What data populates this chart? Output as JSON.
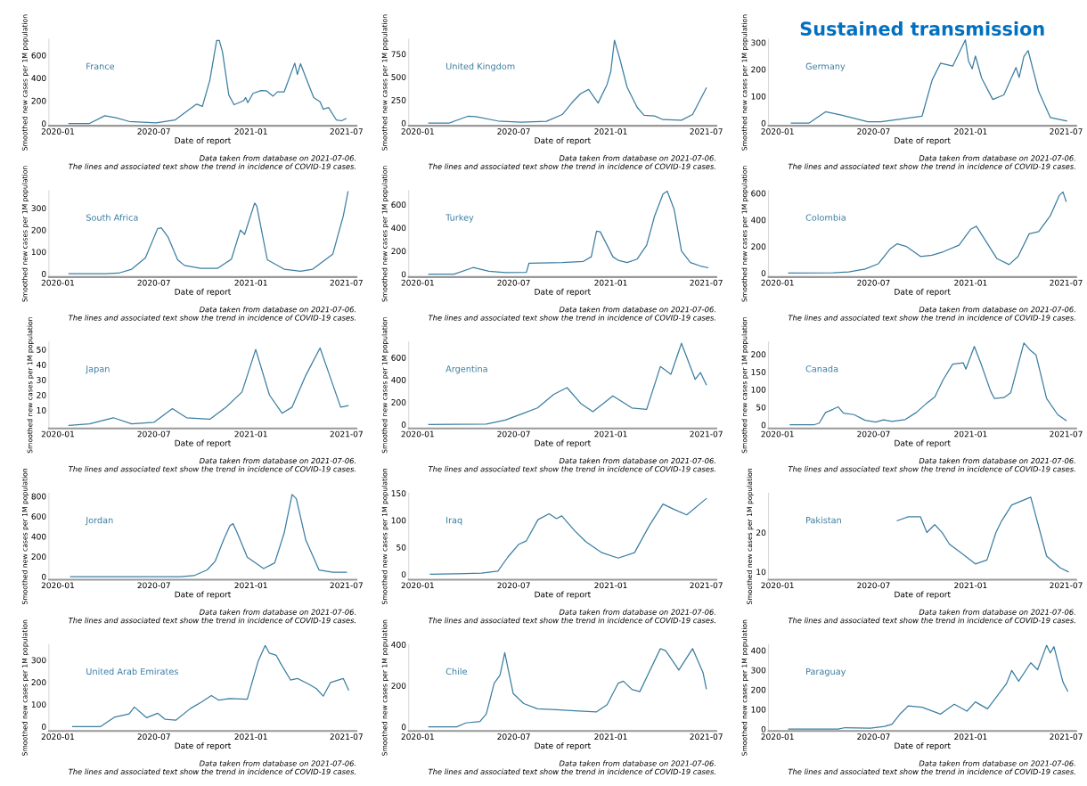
{
  "chart_data": [
    {
      "type": "line",
      "xlabel": "Date of report",
      "ylabel": "Smoothed new cases per 1M population",
      "xlim": [
        "2019-12-15",
        "2021-07-20"
      ],
      "xticks": [
        "2020-01",
        "2020-07",
        "2021-01",
        "2021-07"
      ],
      "ylim": [
        -20,
        740
      ],
      "yticks": [
        0,
        200,
        400,
        600
      ],
      "annotations": [
        "Data taken from database on 2021-07-06.\nThe lines and associated text show the trend in incidence of COVID-19 cases."
      ],
      "series": [
        {
          "name": "France",
          "color": "#3b7ea1",
          "x": [
            "2020-01-22",
            "2020-03-01",
            "2020-03-30",
            "2020-04-20",
            "2020-05-15",
            "2020-07-05",
            "2020-08-10",
            "2020-09-05",
            "2020-09-20",
            "2020-10-01",
            "2020-10-15",
            "2020-10-28",
            "2020-11-02",
            "2020-11-08",
            "2020-11-20",
            "2020-11-30",
            "2020-12-18",
            "2020-12-22",
            "2020-12-26",
            "2021-01-05",
            "2021-01-20",
            "2021-01-30",
            "2021-02-12",
            "2021-02-20",
            "2021-03-05",
            "2021-03-25",
            "2021-03-30",
            "2021-04-05",
            "2021-04-17",
            "2021-04-30",
            "2021-05-12",
            "2021-05-18",
            "2021-05-28",
            "2021-06-12",
            "2021-06-22",
            "2021-06-30"
          ],
          "values": [
            0,
            0,
            68,
            50,
            18,
            6,
            30,
            120,
            170,
            150,
            380,
            730,
            730,
            630,
            250,
            165,
            200,
            228,
            183,
            265,
            290,
            288,
            240,
            278,
            278,
            530,
            430,
            525,
            380,
            228,
            190,
            125,
            140,
            30,
            24,
            43
          ]
        }
      ]
    },
    {
      "type": "line",
      "xlabel": "Date of report",
      "ylabel": "Smoothed new cases per 1M population",
      "xlim": [
        "2019-12-15",
        "2021-07-20"
      ],
      "xticks": [
        "2020-01",
        "2020-07",
        "2021-01",
        "2021-07"
      ],
      "ylim": [
        -30,
        910
      ],
      "yticks": [
        0,
        250,
        500,
        750
      ],
      "annotations": [
        "Data taken from database on 2021-07-06.\nThe lines and associated text show the trend in incidence of COVID-19 cases."
      ],
      "series": [
        {
          "name": "United Kingdom",
          "color": "#3b7ea1",
          "x": [
            "2020-01-22",
            "2020-03-01",
            "2020-04-05",
            "2020-04-20",
            "2020-06-01",
            "2020-07-15",
            "2020-09-01",
            "2020-10-01",
            "2020-10-20",
            "2020-11-05",
            "2020-11-20",
            "2020-12-08",
            "2020-12-25",
            "2021-01-01",
            "2021-01-08",
            "2021-01-18",
            "2021-02-01",
            "2021-02-20",
            "2021-03-05",
            "2021-03-25",
            "2021-04-10",
            "2021-05-15",
            "2021-06-05",
            "2021-07-01"
          ],
          "values": [
            0,
            0,
            73,
            69,
            22,
            9,
            19,
            92,
            225,
            320,
            365,
            217,
            420,
            560,
            900,
            700,
            388,
            170,
            84,
            76,
            37,
            30,
            92,
            380
          ]
        }
      ]
    },
    {
      "type": "line",
      "title": "Sustained transmission",
      "xlabel": "Date of report",
      "ylabel": "Smoothed new cases per 1M population",
      "xlim": [
        "2019-12-15",
        "2021-07-20"
      ],
      "xticks": [
        "2020-01",
        "2020-07",
        "2021-01",
        "2021-07"
      ],
      "ylim": [
        -10,
        312
      ],
      "yticks": [
        0,
        100,
        200,
        300
      ],
      "annotations": [
        "Data taken from database on 2021-07-06.\nThe lines and associated text show the trend in incidence of COVID-19 cases."
      ],
      "series": [
        {
          "name": "Germany",
          "color": "#3b7ea1",
          "x": [
            "2020-01-27",
            "2020-03-01",
            "2020-04-01",
            "2020-05-01",
            "2020-06-20",
            "2020-07-15",
            "2020-08-25",
            "2020-10-01",
            "2020-10-20",
            "2020-11-05",
            "2020-11-28",
            "2020-12-22",
            "2020-12-28",
            "2021-01-04",
            "2021-01-10",
            "2021-01-22",
            "2021-02-12",
            "2021-03-05",
            "2021-03-28",
            "2021-04-03",
            "2021-04-12",
            "2021-04-20",
            "2021-05-10",
            "2021-06-01",
            "2021-07-02"
          ],
          "values": [
            0,
            0,
            42,
            30,
            5,
            5,
            16,
            26,
            160,
            223,
            212,
            310,
            231,
            202,
            250,
            167,
            88,
            105,
            207,
            170,
            248,
            270,
            118,
            21,
            8
          ]
        }
      ]
    },
    {
      "type": "line",
      "xlabel": "Date of report",
      "ylabel": "Smoothed new cases per 1M population",
      "xlim": [
        "2019-12-15",
        "2021-07-20"
      ],
      "xticks": [
        "2020-01",
        "2020-07",
        "2021-01",
        "2021-07"
      ],
      "ylim": [
        -15,
        380
      ],
      "yticks": [
        0,
        100,
        200,
        300
      ],
      "annotations": [
        "Data taken from database on 2021-07-06.\nThe lines and associated text show the trend in incidence of COVID-19 cases."
      ],
      "series": [
        {
          "name": "South Africa",
          "color": "#3b7ea1",
          "x": [
            "2020-01-22",
            "2020-04-01",
            "2020-04-25",
            "2020-05-20",
            "2020-06-15",
            "2020-07-08",
            "2020-07-15",
            "2020-07-28",
            "2020-08-15",
            "2020-08-28",
            "2020-09-28",
            "2020-10-30",
            "2020-11-25",
            "2020-12-12",
            "2020-12-20",
            "2021-01-08",
            "2021-01-12",
            "2021-02-01",
            "2021-03-05",
            "2021-04-05",
            "2021-04-28",
            "2021-06-05",
            "2021-06-25",
            "2021-07-04"
          ],
          "values": [
            0,
            0,
            3,
            21,
            73,
            206,
            210,
            167,
            64,
            38,
            25,
            25,
            67,
            200,
            180,
            323,
            310,
            64,
            21,
            12,
            21,
            89,
            264,
            375
          ]
        }
      ]
    },
    {
      "type": "line",
      "xlabel": "Date of report",
      "ylabel": "Smoothed new cases per 1M population",
      "xlim": [
        "2019-12-15",
        "2021-07-20"
      ],
      "xticks": [
        "2020-01",
        "2020-07",
        "2021-01",
        "2021-07"
      ],
      "ylim": [
        -25,
        720
      ],
      "yticks": [
        0,
        200,
        400,
        600
      ],
      "annotations": [
        "Data taken from database on 2021-07-06.\nThe lines and associated text show the trend in incidence of COVID-19 cases."
      ],
      "series": [
        {
          "name": "Turkey",
          "color": "#3b7ea1",
          "x": [
            "2020-01-22",
            "2020-03-10",
            "2020-04-15",
            "2020-05-15",
            "2020-06-15",
            "2020-07-25",
            "2020-07-30",
            "2020-10-01",
            "2020-11-10",
            "2020-11-25",
            "2020-12-05",
            "2020-12-12",
            "2020-12-25",
            "2021-01-05",
            "2021-01-15",
            "2021-02-01",
            "2021-02-20",
            "2021-03-10",
            "2021-03-25",
            "2021-04-10",
            "2021-04-18",
            "2021-05-01",
            "2021-05-15",
            "2021-06-01",
            "2021-06-20",
            "2021-07-04"
          ],
          "values": [
            0,
            0,
            57,
            25,
            14,
            15,
            95,
            100,
            110,
            150,
            370,
            365,
            250,
            150,
            120,
            100,
            130,
            250,
            500,
            690,
            715,
            560,
            200,
            100,
            70,
            56
          ]
        }
      ]
    },
    {
      "type": "line",
      "xlabel": "Date of report",
      "ylabel": "Smoothed new cases per 1M population",
      "xlim": [
        "2019-12-15",
        "2021-07-20"
      ],
      "xticks": [
        "2020-01",
        "2020-07",
        "2021-01",
        "2021-07"
      ],
      "ylim": [
        -30,
        620
      ],
      "yticks": [
        0,
        200,
        400,
        600
      ],
      "annotations": [
        "Data taken from database on 2021-07-06.\nThe lines and associated text show the trend in incidence of COVID-19 cases."
      ],
      "series": [
        {
          "name": "Colombia",
          "color": "#3b7ea1",
          "x": [
            "2020-01-22",
            "2020-04-15",
            "2020-05-15",
            "2020-06-15",
            "2020-07-10",
            "2020-07-20",
            "2020-08-01",
            "2020-08-15",
            "2020-09-01",
            "2020-09-28",
            "2020-10-20",
            "2020-11-10",
            "2020-12-10",
            "2021-01-01",
            "2021-01-12",
            "2021-02-01",
            "2021-02-20",
            "2021-03-15",
            "2021-04-01",
            "2021-04-22",
            "2021-05-10",
            "2021-06-01",
            "2021-06-18",
            "2021-06-25",
            "2021-07-01"
          ],
          "values": [
            0,
            2,
            8,
            30,
            70,
            120,
            180,
            220,
            200,
            125,
            135,
            160,
            210,
            329,
            352,
            227,
            108,
            64,
            125,
            295,
            312,
            430,
            583,
            610,
            539
          ]
        }
      ]
    },
    {
      "type": "line",
      "xlabel": "Date of report",
      "ylabel": "Smoothed new cases per 1M population",
      "xlim": [
        "2019-12-15",
        "2021-07-20"
      ],
      "xticks": [
        "2020-01",
        "2020-07",
        "2021-01",
        "2021-07"
      ],
      "ylim": [
        -2,
        55
      ],
      "yticks": [
        10,
        20,
        30,
        40,
        50
      ],
      "annotations": [
        "Data taken from database on 2021-07-06.\nThe lines and associated text show the trend in incidence of COVID-19 cases."
      ],
      "series": [
        {
          "name": "Japan",
          "color": "#3b7ea1",
          "x": [
            "2020-01-22",
            "2020-03-01",
            "2020-04-15",
            "2020-05-20",
            "2020-07-01",
            "2020-08-05",
            "2020-09-01",
            "2020-10-15",
            "2020-11-15",
            "2020-12-15",
            "2021-01-10",
            "2021-02-05",
            "2021-03-01",
            "2021-03-20",
            "2021-04-15",
            "2021-05-12",
            "2021-05-25",
            "2021-06-20",
            "2021-07-04"
          ],
          "values": [
            0,
            1,
            5,
            1,
            2,
            11,
            5,
            4,
            12,
            22,
            50,
            20,
            8,
            12,
            33,
            51,
            38,
            12,
            13
          ]
        }
      ]
    },
    {
      "type": "line",
      "xlabel": "Date of report",
      "ylabel": "Smoothed new cases per 1M population",
      "xlim": [
        "2019-12-15",
        "2021-07-20"
      ],
      "xticks": [
        "2020-01",
        "2020-07",
        "2021-01",
        "2021-07"
      ],
      "ylim": [
        -35,
        740
      ],
      "yticks": [
        0,
        200,
        400,
        600
      ],
      "annotations": [
        "Data taken from database on 2021-07-06.\nThe lines and associated text show the trend in incidence of COVID-19 cases."
      ],
      "series": [
        {
          "name": "Argentina",
          "color": "#3b7ea1",
          "x": [
            "2020-01-22",
            "2020-05-10",
            "2020-06-15",
            "2020-07-20",
            "2020-08-15",
            "2020-09-15",
            "2020-10-10",
            "2020-11-05",
            "2020-11-28",
            "2021-01-05",
            "2021-02-10",
            "2021-03-10",
            "2021-04-05",
            "2021-04-25",
            "2021-05-15",
            "2021-06-10",
            "2021-06-20",
            "2021-07-01"
          ],
          "values": [
            0,
            3,
            40,
            101,
            148,
            270,
            330,
            189,
            115,
            256,
            148,
            135,
            519,
            450,
            728,
            404,
            465,
            357
          ]
        }
      ]
    },
    {
      "type": "line",
      "xlabel": "Date of report",
      "ylabel": "Smoothed new cases per 1M population",
      "xlim": [
        "2019-12-15",
        "2021-07-20"
      ],
      "xticks": [
        "2020-01",
        "2020-07",
        "2021-01",
        "2021-07"
      ],
      "ylim": [
        -10,
        235
      ],
      "yticks": [
        0,
        50,
        100,
        150,
        200
      ],
      "annotations": [
        "Data taken from database on 2021-07-06.\nThe lines and associated text show the trend in incidence of COVID-19 cases."
      ],
      "series": [
        {
          "name": "Canada",
          "color": "#3b7ea1",
          "x": [
            "2020-01-25",
            "2020-03-10",
            "2020-03-20",
            "2020-04-01",
            "2020-04-15",
            "2020-04-25",
            "2020-05-05",
            "2020-05-25",
            "2020-06-15",
            "2020-07-05",
            "2020-07-20",
            "2020-08-05",
            "2020-08-30",
            "2020-09-20",
            "2020-10-08",
            "2020-10-25",
            "2020-11-10",
            "2020-11-28",
            "2020-12-18",
            "2020-12-23",
            "2021-01-08",
            "2021-01-20",
            "2021-02-08",
            "2021-02-15",
            "2021-03-05",
            "2021-03-18",
            "2021-04-12",
            "2021-04-25",
            "2021-05-05",
            "2021-05-25",
            "2021-06-15",
            "2021-07-01"
          ],
          "values": [
            0,
            0,
            5,
            35,
            44,
            51,
            33,
            29,
            13,
            8,
            14,
            10,
            15,
            35,
            59,
            79,
            128,
            172,
            176,
            158,
            222,
            176,
            95,
            75,
            77,
            91,
            232,
            210,
            198,
            75,
            29,
            12
          ]
        }
      ]
    },
    {
      "type": "line",
      "xlabel": "Date of report",
      "ylabel": "Smoothed new cases per 1M population",
      "xlim": [
        "2019-12-15",
        "2021-07-20"
      ],
      "xticks": [
        "2020-01",
        "2020-07",
        "2021-01",
        "2021-07"
      ],
      "ylim": [
        -30,
        830
      ],
      "yticks": [
        0,
        200,
        400,
        600,
        800
      ],
      "annotations": [
        "Data taken from database on 2021-07-06.\nThe lines and associated text show the trend in incidence of COVID-19 cases."
      ],
      "series": [
        {
          "name": "Jordan",
          "color": "#3b7ea1",
          "x": [
            "2020-01-25",
            "2020-08-20",
            "2020-09-15",
            "2020-10-10",
            "2020-10-25",
            "2020-11-10",
            "2020-11-22",
            "2020-11-28",
            "2020-12-05",
            "2020-12-25",
            "2021-01-25",
            "2021-02-15",
            "2021-03-05",
            "2021-03-20",
            "2021-03-28",
            "2021-04-15",
            "2021-05-10",
            "2021-06-05",
            "2021-07-01"
          ],
          "values": [
            0,
            0,
            10,
            67,
            152,
            364,
            506,
            527,
            449,
            194,
            81,
            137,
            435,
            817,
            775,
            364,
            67,
            45,
            45
          ]
        }
      ]
    },
    {
      "type": "line",
      "xlabel": "Date of report",
      "ylabel": "Smoothed new cases per 1M population",
      "xlim": [
        "2019-12-15",
        "2021-07-20"
      ],
      "xticks": [
        "2020-01",
        "2020-07",
        "2021-01",
        "2021-07"
      ],
      "ylim": [
        -10,
        150
      ],
      "yticks": [
        0,
        50,
        100,
        150
      ],
      "annotations": [
        "Data taken from database on 2021-07-06.\nThe lines and associated text show the trend in incidence of COVID-19 cases."
      ],
      "series": [
        {
          "name": "Iraq",
          "color": "#3b7ea1",
          "x": [
            "2020-01-25",
            "2020-03-15",
            "2020-05-01",
            "2020-06-01",
            "2020-06-20",
            "2020-07-10",
            "2020-07-25",
            "2020-08-16",
            "2020-09-06",
            "2020-09-20",
            "2020-09-30",
            "2020-10-25",
            "2020-11-15",
            "2020-12-15",
            "2021-01-15",
            "2021-02-15",
            "2021-03-15",
            "2021-04-10",
            "2021-05-01",
            "2021-05-25",
            "2021-07-01"
          ],
          "values": [
            0,
            1,
            2,
            6,
            32,
            55,
            62,
            101,
            112,
            103,
            108,
            80,
            60,
            40,
            30,
            40,
            90,
            130,
            120,
            110,
            140
          ]
        }
      ]
    },
    {
      "type": "line",
      "xlabel": "Date of report",
      "ylabel": "Smoothed new cases per 1M population",
      "xlim": [
        "2019-12-15",
        "2021-07-20"
      ],
      "xticks": [
        "2020-01",
        "2020-07",
        "2021-01",
        "2021-07"
      ],
      "ylim": [
        8,
        30
      ],
      "yticks": [
        10,
        20
      ],
      "annotations": [
        "Data taken from database on 2021-07-06.\nThe lines and associated text show the trend in incidence of COVID-19 cases."
      ],
      "series": [
        {
          "name": "Pakistan",
          "color": "#3b7ea1",
          "x": [
            "2020-08-15",
            "2020-09-05",
            "2020-09-28",
            "2020-10-10",
            "2020-10-25",
            "2020-11-08",
            "2020-11-22",
            "2020-12-12",
            "2021-01-10",
            "2021-02-01",
            "2021-02-18",
            "2021-03-01",
            "2021-03-20",
            "2021-04-25",
            "2021-05-25",
            "2021-06-20",
            "2021-07-05"
          ],
          "values": [
            23,
            24,
            24,
            20,
            22,
            20,
            17,
            15,
            12,
            13,
            20,
            23,
            27,
            29,
            14,
            11,
            10
          ]
        }
      ]
    },
    {
      "type": "line",
      "xlabel": "Date of report",
      "ylabel": "Smoothed new cases per 1M population",
      "xlim": [
        "2019-12-15",
        "2021-07-20"
      ],
      "xticks": [
        "2020-01",
        "2020-07",
        "2021-01",
        "2021-07"
      ],
      "ylim": [
        -20,
        370
      ],
      "yticks": [
        0,
        100,
        200,
        300
      ],
      "annotations": [
        "Data taken from database on 2021-07-06.\nThe lines and associated text show the trend in incidence of COVID-19 cases."
      ],
      "series": [
        {
          "name": "United Arab Emirates",
          "color": "#3b7ea1",
          "x": [
            "2020-01-29",
            "2020-03-22",
            "2020-04-18",
            "2020-05-15",
            "2020-05-25",
            "2020-06-17",
            "2020-07-08",
            "2020-07-22",
            "2020-08-12",
            "2020-09-08",
            "2020-09-28",
            "2020-10-18",
            "2020-11-01",
            "2020-11-22",
            "2020-12-25",
            "2021-01-15",
            "2021-01-28",
            "2021-02-05",
            "2021-02-18",
            "2021-02-25",
            "2021-03-17",
            "2021-03-30",
            "2021-04-20",
            "2021-05-05",
            "2021-05-18",
            "2021-06-01",
            "2021-06-25",
            "2021-07-05"
          ],
          "values": [
            0,
            0,
            43,
            57,
            88,
            40,
            60,
            33,
            29,
            81,
            109,
            140,
            119,
            126,
            123,
            297,
            366,
            331,
            321,
            290,
            210,
            217,
            192,
            171,
            137,
            199,
            217,
            165
          ]
        }
      ]
    },
    {
      "type": "line",
      "xlabel": "Date of report",
      "ylabel": "Smoothed new cases per 1M population",
      "xlim": [
        "2019-12-15",
        "2021-07-20"
      ],
      "xticks": [
        "2020-01",
        "2020-07",
        "2021-01",
        "2021-07"
      ],
      "ylim": [
        -20,
        400
      ],
      "yticks": [
        0,
        200,
        400
      ],
      "annotations": [
        "Data taken from database on 2021-07-06.\nThe lines and associated text show the trend in incidence of COVID-19 cases."
      ],
      "series": [
        {
          "name": "Chile",
          "color": "#3b7ea1",
          "x": [
            "2020-01-22",
            "2020-03-15",
            "2020-04-01",
            "2020-04-28",
            "2020-05-10",
            "2020-05-25",
            "2020-06-05",
            "2020-06-14",
            "2020-06-30",
            "2020-07-20",
            "2020-08-15",
            "2020-09-20",
            "2020-10-25",
            "2020-12-05",
            "2020-12-25",
            "2021-01-15",
            "2021-01-25",
            "2021-02-10",
            "2021-02-25",
            "2021-04-05",
            "2021-04-15",
            "2021-05-10",
            "2021-06-05",
            "2021-06-25",
            "2021-07-01"
          ],
          "values": [
            0,
            0,
            19,
            26,
            63,
            212,
            251,
            360,
            162,
            113,
            88,
            83,
            78,
            73,
            108,
            212,
            222,
            182,
            171,
            380,
            370,
            276,
            380,
            262,
            186
          ]
        }
      ]
    },
    {
      "type": "line",
      "xlabel": "Date of report",
      "ylabel": "Smoothed new cases per 1M population",
      "xlim": [
        "2019-12-15",
        "2021-07-20"
      ],
      "xticks": [
        "2020-01",
        "2020-07",
        "2021-01",
        "2021-07"
      ],
      "ylim": [
        -10,
        430
      ],
      "yticks": [
        0,
        100,
        200,
        300,
        400
      ],
      "annotations": [
        "Data taken from database on 2021-07-06.\nThe lines and associated text show the trend in incidence of COVID-19 cases."
      ],
      "series": [
        {
          "name": "Paraguay",
          "color": "#3b7ea1",
          "x": [
            "2020-01-22",
            "2020-04-25",
            "2020-05-08",
            "2020-06-25",
            "2020-07-22",
            "2020-08-05",
            "2020-08-20",
            "2020-09-05",
            "2020-10-01",
            "2020-11-05",
            "2020-12-01",
            "2020-12-25",
            "2021-01-10",
            "2021-02-02",
            "2021-03-10",
            "2021-03-20",
            "2021-04-02",
            "2021-04-25",
            "2021-05-08",
            "2021-05-25",
            "2021-06-01",
            "2021-06-08",
            "2021-06-25",
            "2021-07-04"
          ],
          "values": [
            0,
            0,
            7,
            4,
            13,
            25,
            76,
            118,
            111,
            76,
            126,
            91,
            138,
            103,
            231,
            298,
            243,
            337,
            302,
            426,
            387,
            419,
            239,
            193
          ]
        }
      ]
    }
  ]
}
